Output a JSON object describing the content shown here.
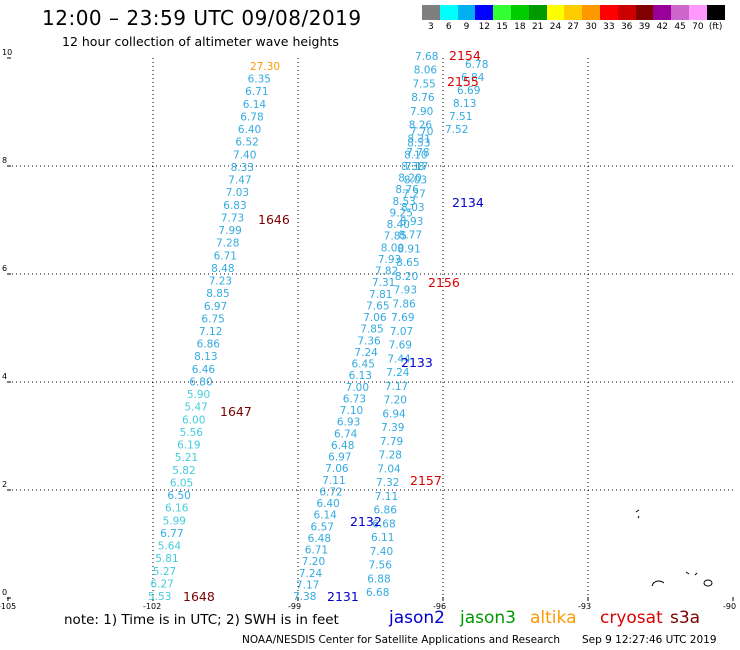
{
  "header": {
    "title": "12:00 – 23:59 UTC 09/08/2019",
    "subtitle": "12 hour collection of altimeter wave heights"
  },
  "scale": {
    "unit": "(ft)",
    "stops": [
      {
        "label": "3",
        "color": "#7f7f7f"
      },
      {
        "label": "6",
        "color": "#00ffff"
      },
      {
        "label": "9",
        "color": "#00b0f0"
      },
      {
        "label": "12",
        "color": "#0000ff"
      },
      {
        "label": "15",
        "color": "#33ff33"
      },
      {
        "label": "18",
        "color": "#00cc00"
      },
      {
        "label": "21",
        "color": "#009900"
      },
      {
        "label": "24",
        "color": "#ffff00"
      },
      {
        "label": "27",
        "color": "#ffcc00"
      },
      {
        "label": "30",
        "color": "#ff9900"
      },
      {
        "label": "33",
        "color": "#ff0000"
      },
      {
        "label": "36",
        "color": "#cc0000"
      },
      {
        "label": "39",
        "color": "#800000"
      },
      {
        "label": "42",
        "color": "#990099"
      },
      {
        "label": "45",
        "color": "#cc66cc"
      },
      {
        "label": "70",
        "color": "#ff99ff"
      },
      {
        "label": "",
        "color": "#000000"
      }
    ]
  },
  "axes": {
    "x_ticks": [
      "-105",
      "-102",
      "-99",
      "-96",
      "-93",
      "-90"
    ],
    "y_ticks": [
      "0",
      "2",
      "4",
      "6",
      "8",
      "10"
    ]
  },
  "colors": {
    "light_blue": "#33aae0",
    "cyan_light": "#44ccdd",
    "orange": "#ff9900",
    "dark_red": "#7a0000",
    "red": "#dd0000",
    "blue": "#0000cc"
  },
  "tracks": [
    {
      "name": "track-left",
      "values": [
        "27.30",
        "6.35",
        "6.71",
        "6.14",
        "6.78",
        "6.40",
        "6.52",
        "7.40",
        "8.33",
        "7.47",
        "7.03",
        "6.83",
        "7.73",
        "7.99",
        "7.28",
        "6.71",
        "8.48",
        "7.23",
        "8.85",
        "6.97",
        "6.75",
        "7.12",
        "6.86",
        "8.13",
        "6.46",
        "6.80",
        "5.90",
        "5.47",
        "6.00",
        "5.56",
        "6.19",
        "5.21",
        "5.82",
        "6.05",
        "6.50",
        "6.16",
        "5.99",
        "6.77",
        "5.64",
        "5.81",
        "5.27",
        "6.27",
        "5.53"
      ]
    },
    {
      "name": "track-middle",
      "values": [
        "7.70",
        "8.53",
        "8.10",
        "8.38",
        "8.20",
        "8.76",
        "8.53",
        "9.25",
        "8.40",
        "7.85",
        "8.00",
        "7.93",
        "7.82",
        "7.31",
        "7.81",
        "7.65",
        "7.06",
        "7.85",
        "7.36",
        "7.24",
        "6.45",
        "6.13",
        "7.00",
        "6.73",
        "7.10",
        "6.93",
        "6.74",
        "6.48",
        "6.97",
        "7.06",
        "7.11",
        "6.72",
        "6.40",
        "6.14",
        "6.57",
        "6.48",
        "6.71",
        "7.20",
        "7.24",
        "7.17",
        "7.38"
      ]
    },
    {
      "name": "track-right",
      "values": [
        "7.68",
        "8.06",
        "7.55",
        "8.76",
        "7.90",
        "8.26",
        "8.31",
        "7.78",
        "7.17",
        "8.03",
        "7.27",
        "8.03",
        "8.93",
        "8.77",
        "8.91",
        "8.65",
        "8.20",
        "7.93",
        "7.86",
        "7.69",
        "7.07",
        "7.69",
        "7.44",
        "7.24",
        "7.17",
        "7.20",
        "6.94",
        "7.39",
        "7.79",
        "7.28",
        "7.04",
        "7.32",
        "7.11",
        "6.86",
        "6.68",
        "6.11",
        "7.40",
        "7.56",
        "6.88",
        "6.68"
      ]
    },
    {
      "name": "track-far-right",
      "values": [
        "6.78",
        "6.84",
        "6.69",
        "8.13",
        "7.51",
        "7.52"
      ]
    }
  ],
  "track_labels": [
    "1646",
    "1647",
    "1648",
    "2154",
    "2155",
    "2134",
    "2156",
    "2133",
    "2157",
    "2132",
    "2131"
  ],
  "footer": {
    "note": "note:  1) Time is in UTC;  2) SWH is in feet",
    "legend": [
      {
        "label": "jason2",
        "color": "#0000cc"
      },
      {
        "label": "jason3",
        "color": "#009900"
      },
      {
        "label": "altika",
        "color": "#ff9900"
      },
      {
        "label": "cryosat",
        "color": "#dd0000"
      },
      {
        "label": "s3a",
        "color": "#7a0000"
      }
    ],
    "credit": "NOAA/NESDIS Center for Satellite Applications and Research",
    "timestamp": "Sep  9 12:27:46 UTC 2019"
  }
}
